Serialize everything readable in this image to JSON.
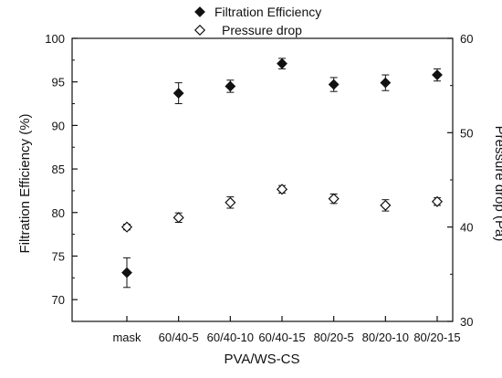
{
  "chart_data": {
    "type": "scatter",
    "xlabel": "PVA/WS-CS",
    "categories": [
      "mask",
      "60/40-5",
      "60/40-10",
      "60/40-15",
      "80/20-5",
      "80/20-10",
      "80/20-15"
    ],
    "y_left": {
      "label": "Filtration Efficiency (%)",
      "ylim": [
        67.5,
        100
      ],
      "ticks": [
        70,
        75,
        80,
        85,
        90,
        95,
        100
      ]
    },
    "y_right": {
      "label": "Pressure drop (Pa)",
      "ylim": [
        30,
        60
      ],
      "ticks": [
        30,
        40,
        50,
        60
      ]
    },
    "legend": {
      "placement": "top",
      "entries": [
        {
          "name": "Filtration Efficiency",
          "marker": "filled-diamond"
        },
        {
          "name": "Pressure drop",
          "marker": "open-diamond"
        }
      ]
    },
    "series": [
      {
        "name": "Filtration Efficiency",
        "axis": "left",
        "marker": "filled-diamond",
        "values": [
          73.1,
          93.7,
          94.5,
          97.1,
          94.7,
          94.9,
          95.8
        ],
        "errors": [
          1.7,
          1.2,
          0.7,
          0.6,
          0.8,
          0.9,
          0.7
        ]
      },
      {
        "name": "Pressure drop",
        "axis": "right",
        "marker": "open-diamond",
        "values": [
          40.0,
          41.0,
          42.6,
          44.0,
          43.0,
          42.3,
          42.7
        ],
        "errors": [
          0.3,
          0.5,
          0.6,
          0.4,
          0.5,
          0.6,
          0.4
        ]
      }
    ],
    "grid": false
  },
  "colors": {
    "axis": "#111111",
    "marker": "#111111",
    "background": "#ffffff"
  }
}
